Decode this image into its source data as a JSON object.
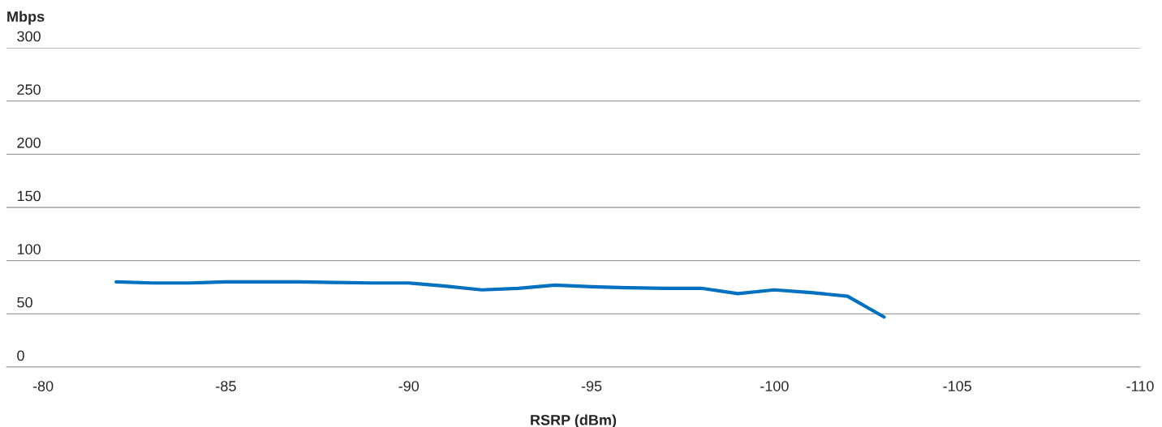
{
  "chart_data": {
    "type": "line",
    "ylabel": "Mbps",
    "xlabel": "RSRP (dBm)",
    "x": [
      -82,
      -83,
      -84,
      -85,
      -86,
      -87,
      -88,
      -89,
      -90,
      -91,
      -92,
      -93,
      -94,
      -95,
      -96,
      -97,
      -98,
      -99,
      -100,
      -101,
      -102,
      -103
    ],
    "series": [
      {
        "color": "#0070c0",
        "values": [
          80,
          79,
          79,
          80,
          80,
          80,
          79.5,
          79,
          79,
          76,
          72.5,
          74,
          77,
          75.5,
          74.5,
          74,
          74,
          69,
          72.5,
          70,
          66.5,
          47
        ]
      }
    ],
    "xlim": [
      -79,
      -110
    ],
    "xticks": [
      -80,
      -85,
      -90,
      -95,
      -100,
      -105,
      -110
    ],
    "ylim": [
      0,
      300
    ],
    "yticks": [
      0,
      50,
      100,
      150,
      200,
      250,
      300
    ],
    "grid": "y",
    "marker": "none",
    "line_style": "solid",
    "legend": false
  }
}
